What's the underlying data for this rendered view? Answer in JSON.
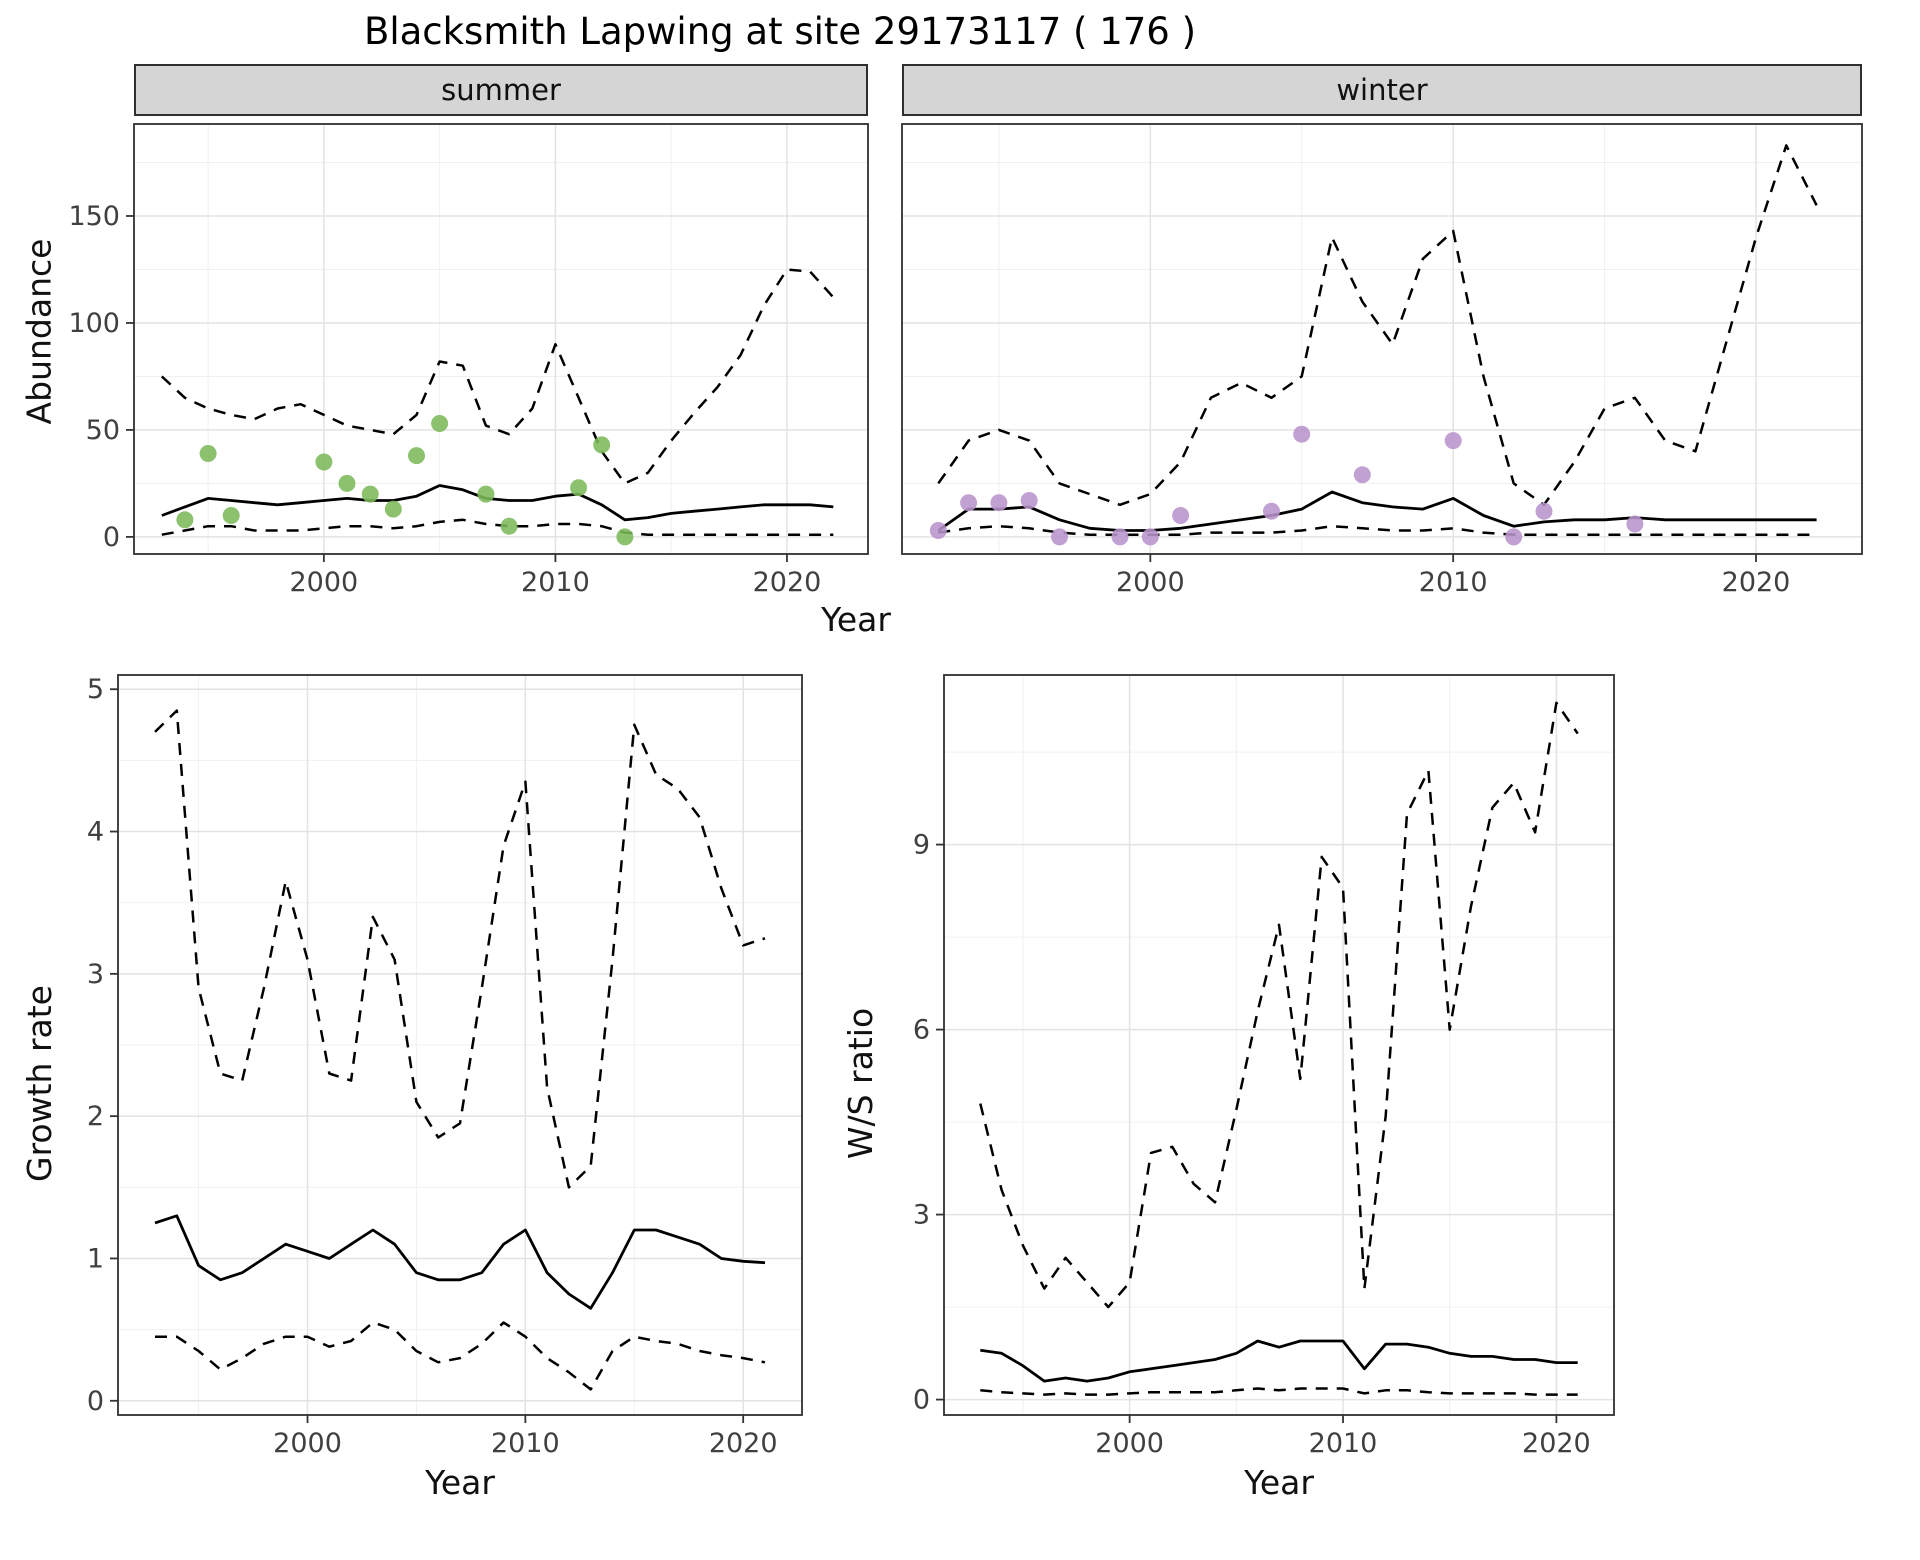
{
  "title": "Blacksmith Lapwing at site 29173117 ( 176 )",
  "colors": {
    "summer_points": "#7cb85a",
    "winter_points": "#b893cc",
    "line": "#000000",
    "grid_major": "#e3e3e3",
    "grid_minor": "#f0f0f0",
    "strip_bg": "#d5d5d5",
    "panel_border": "#2f2f2f",
    "tick_text": "#404040"
  },
  "chart_data": [
    {
      "id": "abundance-summer",
      "type": "line",
      "facet_label": "summer",
      "xlabel": "Year",
      "ylabel": "Abundance",
      "xlim": [
        1991.8,
        2023.5
      ],
      "ylim": [
        -8,
        193
      ],
      "xticks": [
        2000,
        2010,
        2020
      ],
      "yticks": [
        0,
        50,
        100,
        150
      ],
      "grid": true,
      "legend": "none",
      "x": [
        1993,
        1994,
        1995,
        1996,
        1997,
        1998,
        1999,
        2000,
        2001,
        2002,
        2003,
        2004,
        2005,
        2006,
        2007,
        2008,
        2009,
        2010,
        2011,
        2012,
        2013,
        2014,
        2015,
        2016,
        2017,
        2018,
        2019,
        2020,
        2021,
        2022
      ],
      "series": [
        {
          "name": "median",
          "style": "solid",
          "values": [
            10,
            14,
            18,
            17,
            16,
            15,
            16,
            17,
            18,
            17,
            17,
            19,
            24,
            22,
            18,
            17,
            17,
            19,
            20,
            15,
            8,
            9,
            11,
            12,
            13,
            14,
            15,
            15,
            15,
            14
          ]
        },
        {
          "name": "upper_CI",
          "style": "dashed",
          "values": [
            75,
            65,
            60,
            57,
            55,
            60,
            62,
            57,
            52,
            50,
            48,
            57,
            82,
            80,
            52,
            48,
            60,
            90,
            65,
            40,
            25,
            30,
            45,
            58,
            70,
            85,
            108,
            125,
            124,
            112
          ]
        },
        {
          "name": "lower_CI",
          "style": "dashed",
          "values": [
            1,
            3,
            5,
            5,
            3,
            3,
            3,
            4,
            5,
            5,
            4,
            5,
            7,
            8,
            6,
            5,
            5,
            6,
            6,
            5,
            2,
            1,
            1,
            1,
            1,
            1,
            1,
            1,
            1,
            1
          ]
        }
      ],
      "points": {
        "name": "observed_counts",
        "color": "#7cb85a",
        "x": [
          1994,
          1995,
          1996,
          2000,
          2001,
          2002,
          2003,
          2004,
          2005,
          2007,
          2008,
          2011,
          2012,
          2013
        ],
        "y": [
          8,
          39,
          10,
          35,
          25,
          20,
          13,
          38,
          53,
          20,
          5,
          23,
          43,
          0
        ]
      }
    },
    {
      "id": "abundance-winter",
      "type": "line",
      "facet_label": "winter",
      "xlabel": "Year",
      "ylabel": "Abundance",
      "xlim": [
        1991.8,
        2023.5
      ],
      "ylim": [
        -8,
        193
      ],
      "xticks": [
        2000,
        2010,
        2020
      ],
      "yticks": [
        0,
        50,
        100,
        150
      ],
      "grid": true,
      "legend": "none",
      "x": [
        1993,
        1994,
        1995,
        1996,
        1997,
        1998,
        1999,
        2000,
        2001,
        2002,
        2003,
        2004,
        2005,
        2006,
        2007,
        2008,
        2009,
        2010,
        2011,
        2012,
        2013,
        2014,
        2015,
        2016,
        2017,
        2018,
        2019,
        2020,
        2021,
        2022
      ],
      "series": [
        {
          "name": "median",
          "style": "solid",
          "values": [
            3,
            13,
            13,
            14,
            8,
            4,
            3,
            3,
            4,
            6,
            8,
            10,
            13,
            21,
            16,
            14,
            13,
            18,
            10,
            5,
            7,
            8,
            8,
            9,
            8,
            8,
            8,
            8,
            8,
            8
          ]
        },
        {
          "name": "upper_CI",
          "style": "dashed",
          "values": [
            25,
            45,
            50,
            45,
            25,
            20,
            15,
            20,
            35,
            65,
            72,
            65,
            75,
            140,
            110,
            90,
            130,
            143,
            75,
            25,
            15,
            35,
            60,
            65,
            45,
            40,
            90,
            140,
            183,
            155
          ]
        },
        {
          "name": "lower_CI",
          "style": "dashed",
          "values": [
            2,
            4,
            5,
            4,
            2,
            1,
            1,
            1,
            1,
            2,
            2,
            2,
            3,
            5,
            4,
            3,
            3,
            4,
            2,
            1,
            1,
            1,
            1,
            1,
            1,
            1,
            1,
            1,
            1,
            1
          ]
        }
      ],
      "points": {
        "name": "observed_counts",
        "color": "#b893cc",
        "x": [
          1993,
          1994,
          1995,
          1996,
          1997,
          1999,
          2000,
          2001,
          2004,
          2005,
          2007,
          2010,
          2012,
          2013,
          2016
        ],
        "y": [
          3,
          16,
          16,
          17,
          0,
          0,
          0,
          10,
          12,
          48,
          29,
          45,
          0,
          12,
          6
        ]
      }
    },
    {
      "id": "growth-rate",
      "type": "line",
      "facet_label": "",
      "xlabel": "Year",
      "ylabel": "Growth rate",
      "xlim": [
        1991.3,
        2022.7
      ],
      "ylim": [
        -0.1,
        5.1
      ],
      "xticks": [
        2000,
        2010,
        2020
      ],
      "yticks": [
        0,
        1,
        2,
        3,
        4,
        5
      ],
      "grid": true,
      "legend": "none",
      "x": [
        1993,
        1994,
        1995,
        1996,
        1997,
        1998,
        1999,
        2000,
        2001,
        2002,
        2003,
        2004,
        2005,
        2006,
        2007,
        2008,
        2009,
        2010,
        2011,
        2012,
        2013,
        2014,
        2015,
        2016,
        2017,
        2018,
        2019,
        2020,
        2021
      ],
      "series": [
        {
          "name": "median",
          "style": "solid",
          "values": [
            1.25,
            1.3,
            0.95,
            0.85,
            0.9,
            1.0,
            1.1,
            1.05,
            1.0,
            1.1,
            1.2,
            1.1,
            0.9,
            0.85,
            0.85,
            0.9,
            1.1,
            1.2,
            0.9,
            0.75,
            0.65,
            0.9,
            1.2,
            1.2,
            1.15,
            1.1,
            1.0,
            0.98,
            0.97
          ]
        },
        {
          "name": "upper_CI",
          "style": "dashed",
          "values": [
            4.7,
            4.85,
            2.9,
            2.3,
            2.25,
            2.9,
            3.65,
            3.1,
            2.3,
            2.25,
            3.4,
            3.1,
            2.1,
            1.85,
            1.95,
            2.9,
            3.9,
            4.35,
            2.2,
            1.5,
            1.65,
            3.1,
            4.75,
            4.4,
            4.3,
            4.1,
            3.6,
            3.2,
            3.25
          ]
        },
        {
          "name": "lower_CI",
          "style": "dashed",
          "values": [
            0.45,
            0.45,
            0.35,
            0.22,
            0.3,
            0.4,
            0.45,
            0.45,
            0.38,
            0.42,
            0.55,
            0.5,
            0.35,
            0.27,
            0.3,
            0.4,
            0.55,
            0.45,
            0.3,
            0.2,
            0.08,
            0.35,
            0.45,
            0.42,
            0.4,
            0.35,
            0.32,
            0.3,
            0.27
          ]
        }
      ]
    },
    {
      "id": "ws-ratio",
      "type": "line",
      "facet_label": "",
      "xlabel": "Year",
      "ylabel": "W/S ratio",
      "xlim": [
        1991.3,
        2022.7
      ],
      "ylim": [
        -0.25,
        11.75
      ],
      "xticks": [
        2000,
        2010,
        2020
      ],
      "yticks": [
        0,
        3,
        6,
        9
      ],
      "grid": true,
      "legend": "none",
      "x": [
        1993,
        1994,
        1995,
        1996,
        1997,
        1998,
        1999,
        2000,
        2001,
        2002,
        2003,
        2004,
        2005,
        2006,
        2007,
        2008,
        2009,
        2010,
        2011,
        2012,
        2013,
        2014,
        2015,
        2016,
        2017,
        2018,
        2019,
        2020,
        2021
      ],
      "series": [
        {
          "name": "median",
          "style": "solid",
          "values": [
            0.8,
            0.75,
            0.55,
            0.3,
            0.35,
            0.3,
            0.35,
            0.45,
            0.5,
            0.55,
            0.6,
            0.65,
            0.75,
            0.95,
            0.85,
            0.95,
            0.95,
            0.95,
            0.5,
            0.9,
            0.9,
            0.85,
            0.75,
            0.7,
            0.7,
            0.65,
            0.65,
            0.6,
            0.6
          ]
        },
        {
          "name": "upper_CI",
          "style": "dashed",
          "values": [
            4.8,
            3.4,
            2.5,
            1.8,
            2.3,
            1.9,
            1.5,
            1.9,
            4.0,
            4.1,
            3.5,
            3.2,
            4.7,
            6.3,
            7.7,
            5.2,
            8.8,
            8.3,
            1.8,
            4.6,
            9.5,
            10.2,
            6.0,
            8.0,
            9.6,
            10.0,
            9.2,
            11.3,
            10.8
          ]
        },
        {
          "name": "lower_CI",
          "style": "dashed",
          "values": [
            0.15,
            0.12,
            0.1,
            0.08,
            0.1,
            0.08,
            0.08,
            0.1,
            0.12,
            0.12,
            0.12,
            0.12,
            0.15,
            0.18,
            0.15,
            0.18,
            0.18,
            0.18,
            0.1,
            0.15,
            0.15,
            0.12,
            0.1,
            0.1,
            0.1,
            0.1,
            0.08,
            0.08,
            0.08
          ]
        }
      ]
    }
  ]
}
